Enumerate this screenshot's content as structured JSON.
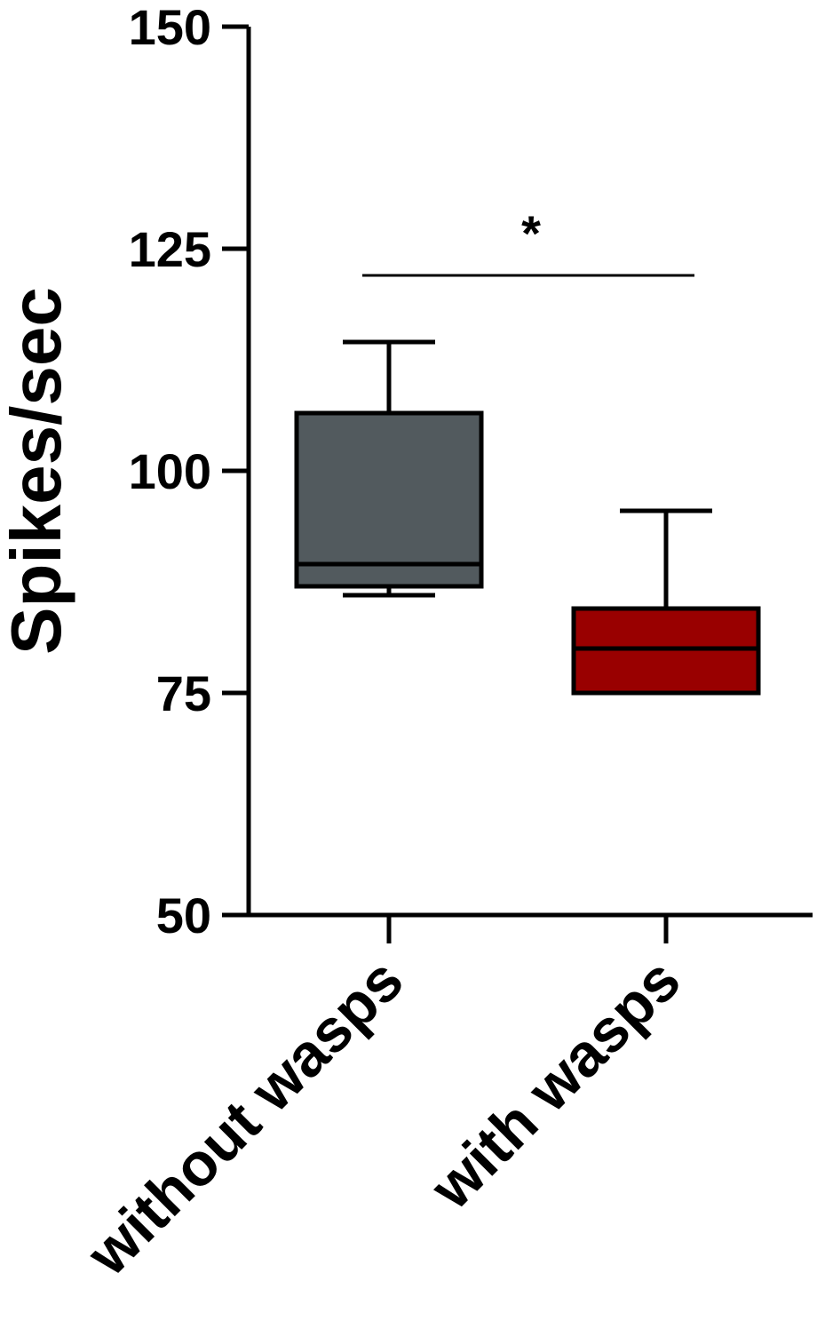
{
  "chart_data": {
    "type": "box",
    "ylabel": "Spikes/sec",
    "xlabel": "",
    "ylim": [
      50,
      150
    ],
    "yticks": [
      50,
      75,
      100,
      125,
      150
    ],
    "categories": [
      "without wasps",
      "with wasps"
    ],
    "boxes": [
      {
        "category": "without wasps",
        "min": 86,
        "q1": 87,
        "median": 89.5,
        "q3": 106.5,
        "max": 114.5,
        "color": "#525a5e"
      },
      {
        "category": "with wasps",
        "min": 75,
        "q1": 75,
        "median": 80,
        "q3": 84.5,
        "max": 95.5,
        "color": "#990000"
      }
    ],
    "annotation": {
      "text": "*",
      "from": "without wasps",
      "to": "with wasps",
      "y": 122
    },
    "grid": false,
    "legend": "none"
  }
}
